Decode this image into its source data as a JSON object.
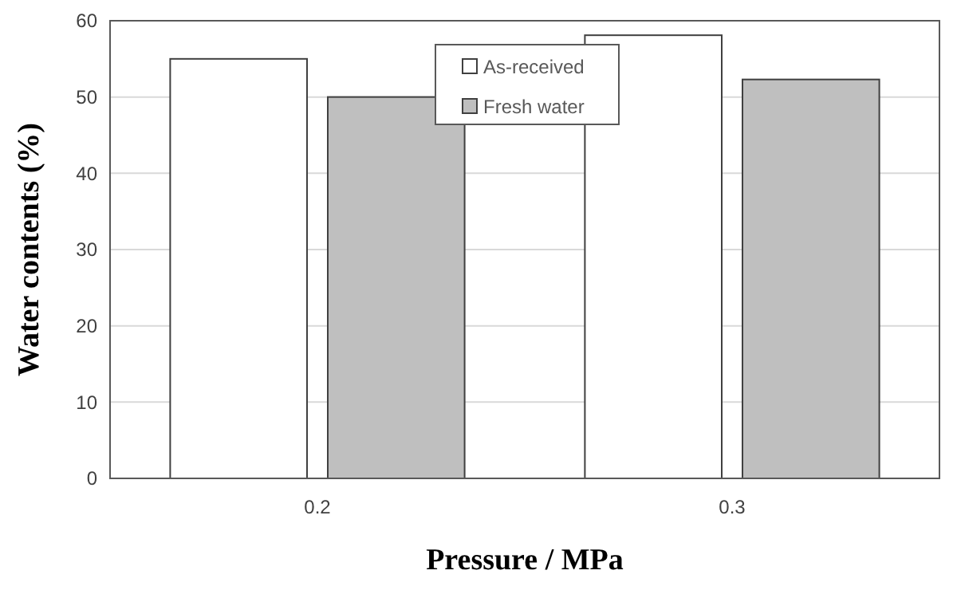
{
  "chart_data": {
    "type": "bar",
    "xlabel": "Pressure / MPa",
    "ylabel": "Water contents (%)",
    "categories": [
      "0.2",
      "0.3"
    ],
    "series": [
      {
        "name": "As-received",
        "color": "#ffffff",
        "values": [
          55.0,
          58.1
        ]
      },
      {
        "name": "Fresh water",
        "color": "#bfbfbf",
        "values": [
          50.0,
          52.3
        ]
      }
    ],
    "ylim": [
      0,
      60
    ],
    "yticks": [
      0,
      10,
      20,
      30,
      40,
      50,
      60
    ],
    "grid": "y",
    "legend": "top"
  }
}
